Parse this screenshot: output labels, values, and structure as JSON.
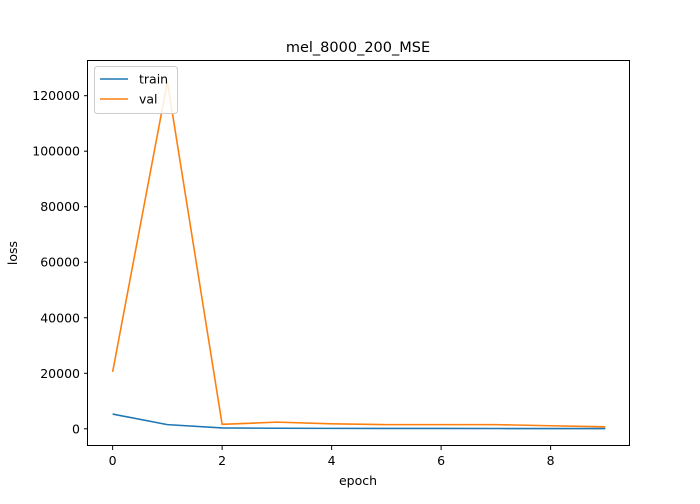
{
  "chart_data": {
    "type": "line",
    "title": "mel_8000_200_MSE",
    "xlabel": "epoch",
    "ylabel": "loss",
    "xlim": [
      -0.45,
      9.45
    ],
    "ylim": [
      -6200,
      132500
    ],
    "xticks": [
      0,
      2,
      4,
      6,
      8
    ],
    "yticks": [
      0,
      20000,
      40000,
      60000,
      80000,
      100000,
      120000
    ],
    "x": [
      0,
      1,
      2,
      3,
      4,
      5,
      6,
      7,
      8,
      9
    ],
    "series": [
      {
        "name": "train",
        "color": "#1f77b4",
        "values": [
          5300,
          1500,
          300,
          200,
          150,
          120,
          110,
          100,
          90,
          80
        ]
      },
      {
        "name": "val",
        "color": "#ff7f0e",
        "values": [
          20500,
          125000,
          1600,
          2400,
          1800,
          1500,
          1500,
          1500,
          1100,
          700
        ]
      }
    ],
    "legend_position": "top-left",
    "grid": false
  }
}
